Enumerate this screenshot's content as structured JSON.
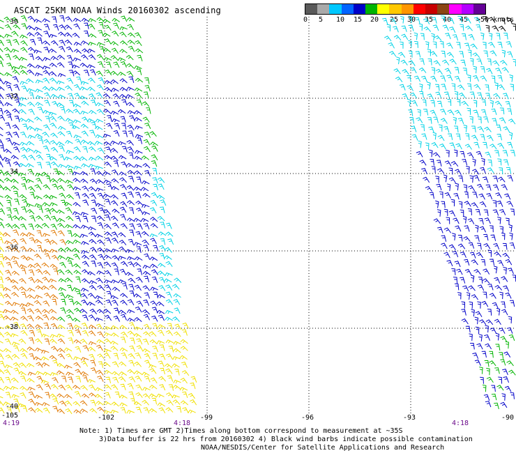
{
  "title": "ASCAT 25KM NOAA Winds 20160302 ascending",
  "legend": {
    "units_label": ">50 knots",
    "ticks": [
      "0",
      "5",
      "10",
      "15",
      "20",
      "25",
      "30",
      "35",
      "40",
      "45"
    ],
    "colors": [
      "#5a5a5a",
      "#aaaaaa",
      "#00c8ff",
      "#0064ff",
      "#0000c8",
      "#00b400",
      "#ffff00",
      "#ffc800",
      "#ff9600",
      "#ff0000",
      "#c80000",
      "#8b4513",
      "#ff00ff",
      "#b400ff",
      "#640096"
    ]
  },
  "map": {
    "lat_labels": [
      "-30",
      "-32",
      "-34",
      "-36",
      "-38",
      "-40"
    ],
    "lon_labels": [
      "-105",
      "-102",
      "-99",
      "-96",
      "-93",
      "-90"
    ],
    "time_labels": [
      "4:19",
      "4:18",
      "4:18"
    ],
    "swath_colors": {
      "cyan": "#00d2e6",
      "blue": "#0000c8",
      "green": "#00b400",
      "yellow": "#f0e000",
      "orange": "#e07800",
      "black": "#000000"
    }
  },
  "notes": {
    "line1": "Note: 1) Times are GMT 2)Times along bottom correspond to measurement at ~35S",
    "line2": "3)Data buffer is 22 hrs from 20160302 4) Black wind barbs indicate possible contamination",
    "line3": "NOAA/NESDIS/Center for Satellite Applications and Research"
  }
}
